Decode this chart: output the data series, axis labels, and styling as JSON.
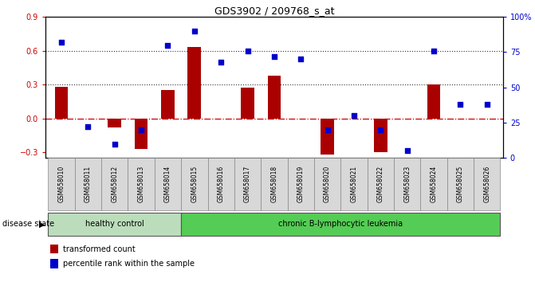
{
  "title": "GDS3902 / 209768_s_at",
  "samples": [
    "GSM658010",
    "GSM658011",
    "GSM658012",
    "GSM658013",
    "GSM658014",
    "GSM658015",
    "GSM658016",
    "GSM658017",
    "GSM658018",
    "GSM658019",
    "GSM658020",
    "GSM658021",
    "GSM658022",
    "GSM658023",
    "GSM658024",
    "GSM658025",
    "GSM658026"
  ],
  "bar_values": [
    0.28,
    0.0,
    -0.08,
    -0.27,
    0.25,
    0.63,
    0.0,
    0.27,
    0.38,
    0.0,
    -0.32,
    0.0,
    -0.3,
    0.0,
    0.3,
    0.0,
    0.0
  ],
  "dot_percentiles": [
    82,
    22,
    10,
    20,
    80,
    90,
    68,
    76,
    72,
    70,
    20,
    30,
    20,
    5,
    76,
    38,
    38
  ],
  "ylim": [
    -0.35,
    0.9
  ],
  "y2lim": [
    0,
    100
  ],
  "yticks": [
    -0.3,
    0.0,
    0.3,
    0.6,
    0.9
  ],
  "y2ticks": [
    0,
    25,
    50,
    75,
    100
  ],
  "hlines": [
    0.3,
    0.6
  ],
  "bar_color": "#aa0000",
  "dot_color": "#0000cc",
  "zero_line_color": "#cc0000",
  "hline_color": "#333333",
  "group1_label": "healthy control",
  "group2_label": "chronic B-lymphocytic leukemia",
  "group1_count": 5,
  "group2_count": 12,
  "group1_color": "#bbddbb",
  "group2_color": "#55cc55",
  "disease_state_label": "disease state",
  "legend_bar_label": "transformed count",
  "legend_dot_label": "percentile rank within the sample"
}
